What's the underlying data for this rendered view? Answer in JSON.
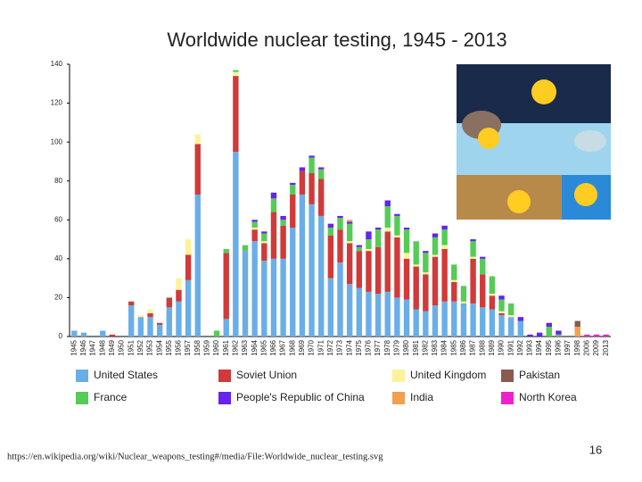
{
  "chart_data": {
    "type": "stacked_bar",
    "title": "Worldwide nuclear testing, 1945 - 2013",
    "categories": [
      1945,
      1946,
      1947,
      1948,
      1949,
      1950,
      1951,
      1952,
      1953,
      1954,
      1955,
      1956,
      1957,
      1958,
      1959,
      1960,
      1961,
      1962,
      1963,
      1964,
      1965,
      1966,
      1967,
      1968,
      1969,
      1970,
      1971,
      1972,
      1973,
      1974,
      1975,
      1976,
      1977,
      1978,
      1979,
      1980,
      1981,
      1982,
      1983,
      1984,
      1985,
      1986,
      1987,
      1988,
      1989,
      1990,
      1991,
      1992,
      1993,
      1994,
      1995,
      1996,
      1997,
      1998,
      2006,
      2009,
      2013
    ],
    "series": [
      {
        "name": "United States",
        "color": "#6aaee8",
        "values": [
          3,
          2,
          0,
          3,
          0,
          0,
          16,
          10,
          10,
          6,
          15,
          18,
          29,
          73,
          0,
          0,
          9,
          95,
          44,
          49,
          39,
          40,
          40,
          56,
          73,
          68,
          62,
          30,
          38,
          27,
          25,
          23,
          22,
          23,
          20,
          19,
          14,
          13,
          16,
          18,
          18,
          17,
          17,
          15,
          14,
          11,
          10,
          8,
          0,
          0,
          0,
          0,
          0,
          0,
          0,
          0,
          0
        ]
      },
      {
        "name": "Soviet Union",
        "color": "#d03a3a",
        "values": [
          0,
          0,
          0,
          0,
          1,
          0,
          2,
          0,
          2,
          1,
          5,
          6,
          13,
          26,
          0,
          0,
          34,
          39,
          0,
          6,
          9,
          24,
          17,
          17,
          12,
          16,
          19,
          22,
          17,
          21,
          19,
          21,
          24,
          31,
          31,
          21,
          22,
          19,
          25,
          27,
          10,
          0,
          23,
          17,
          7,
          1,
          0,
          0,
          0,
          0,
          0,
          0,
          0,
          0,
          0,
          0,
          0
        ]
      },
      {
        "name": "United Kingdom",
        "color": "#fdf29c",
        "values": [
          0,
          0,
          0,
          0,
          0,
          0,
          0,
          1,
          2,
          0,
          0,
          6,
          8,
          5,
          0,
          0,
          0,
          2,
          0,
          1,
          1,
          0,
          0,
          0,
          0,
          0,
          0,
          0,
          0,
          1,
          0,
          1,
          0,
          2,
          1,
          3,
          1,
          1,
          1,
          2,
          1,
          1,
          1,
          0,
          1,
          1,
          1,
          0,
          0,
          0,
          0,
          0,
          0,
          0,
          0,
          0,
          0
        ]
      },
      {
        "name": "France",
        "color": "#55cc55",
        "values": [
          0,
          0,
          0,
          0,
          0,
          0,
          0,
          0,
          0,
          0,
          0,
          0,
          0,
          0,
          0,
          3,
          2,
          1,
          3,
          3,
          4,
          7,
          3,
          5,
          0,
          8,
          5,
          4,
          6,
          9,
          2,
          5,
          9,
          11,
          10,
          12,
          12,
          10,
          9,
          8,
          8,
          8,
          8,
          8,
          9,
          6,
          6,
          0,
          0,
          0,
          5,
          1,
          0,
          0,
          0,
          0,
          0
        ]
      },
      {
        "name": "People's Republic of China",
        "color": "#6622ee",
        "values": [
          0,
          0,
          0,
          0,
          0,
          0,
          0,
          0,
          0,
          0,
          0,
          0,
          0,
          0,
          0,
          0,
          0,
          0,
          0,
          1,
          1,
          3,
          2,
          1,
          2,
          1,
          1,
          2,
          1,
          1,
          1,
          4,
          1,
          3,
          1,
          1,
          0,
          1,
          2,
          2,
          0,
          0,
          1,
          1,
          0,
          2,
          0,
          2,
          1,
          2,
          2,
          2,
          0,
          0,
          0,
          0,
          0
        ]
      },
      {
        "name": "India",
        "color": "#f0a050",
        "values": [
          0,
          0,
          0,
          0,
          0,
          0,
          0,
          0,
          0,
          0,
          0,
          0,
          0,
          0,
          0,
          0,
          0,
          0,
          0,
          0,
          0,
          0,
          0,
          0,
          0,
          0,
          0,
          0,
          0,
          1,
          0,
          0,
          0,
          0,
          0,
          0,
          0,
          0,
          0,
          0,
          0,
          0,
          0,
          0,
          0,
          0,
          0,
          0,
          0,
          0,
          0,
          0,
          0,
          5,
          0,
          0,
          0
        ]
      },
      {
        "name": "Pakistan",
        "color": "#8a5a50",
        "values": [
          0,
          0,
          0,
          0,
          0,
          0,
          0,
          0,
          0,
          0,
          0,
          0,
          0,
          0,
          0,
          0,
          0,
          0,
          0,
          0,
          0,
          0,
          0,
          0,
          0,
          0,
          0,
          0,
          0,
          0,
          0,
          0,
          0,
          0,
          0,
          0,
          0,
          0,
          0,
          0,
          0,
          0,
          0,
          0,
          0,
          0,
          0,
          0,
          0,
          0,
          0,
          0,
          0,
          3,
          0,
          0,
          0
        ]
      },
      {
        "name": "North Korea",
        "color": "#ee22cc",
        "values": [
          0,
          0,
          0,
          0,
          0,
          0,
          0,
          0,
          0,
          0,
          0,
          0,
          0,
          0,
          0,
          0,
          0,
          0,
          0,
          0,
          0,
          0,
          0,
          0,
          0,
          0,
          0,
          0,
          0,
          0,
          0,
          0,
          0,
          0,
          0,
          0,
          0,
          0,
          0,
          0,
          0,
          0,
          0,
          0,
          0,
          0,
          0,
          0,
          0,
          0,
          0,
          0,
          0,
          0,
          1,
          1,
          1
        ]
      }
    ],
    "ylim": [
      0,
      140
    ],
    "yticks": [
      0,
      20,
      40,
      60,
      80,
      100,
      120,
      140
    ],
    "grid": false
  },
  "footer": {
    "source": "https://en.wikipedia.org/wiki/Nuclear_weapons_testing#/media/File:Worldwide_nuclear_testing.svg",
    "page": 16
  }
}
